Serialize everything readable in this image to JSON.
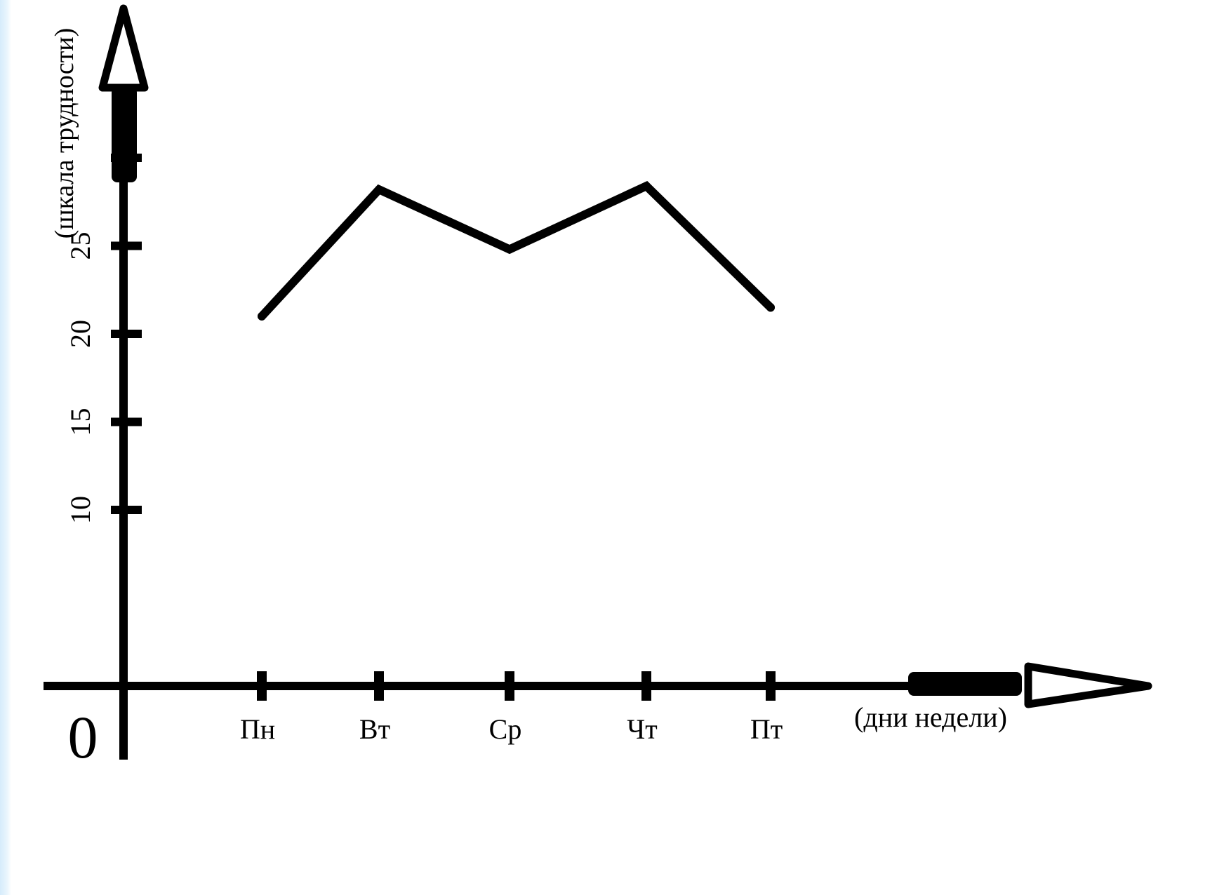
{
  "chart_data": {
    "type": "line",
    "xlabel": "(дни недели)",
    "ylabel": "(шкала трудности)",
    "origin_label": "0",
    "categories": [
      "Пн",
      "Вт",
      "Ср",
      "Чт",
      "Пт"
    ],
    "y_ticks": [
      10,
      15,
      20,
      25,
      30
    ],
    "y_tick_labels": [
      "10",
      "15",
      "20",
      "25"
    ],
    "ylim": [
      0,
      30
    ],
    "grid": false,
    "series": [
      {
        "values": [
          21,
          28.2,
          24.8,
          28.4,
          21.5
        ]
      }
    ],
    "colors": {
      "line": "#000000",
      "axis": "#000000"
    }
  }
}
